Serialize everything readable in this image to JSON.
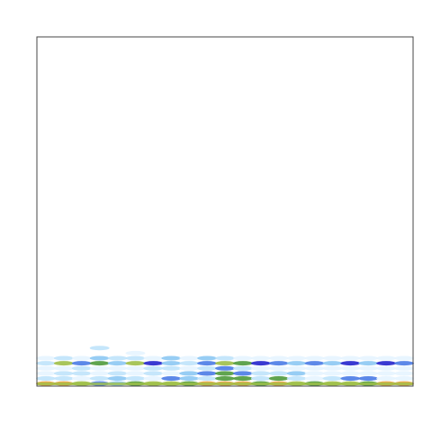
{
  "chart_data": {
    "type": "heatmap",
    "title": "",
    "xlabel": "",
    "ylabel": "",
    "grid": false,
    "legend": "none",
    "axes_frame": true,
    "tick_labels_shown": false,
    "colors": {
      "background": "#ffffff",
      "frame": "#444444",
      "scale": [
        "#ffffff",
        "#dff1ff",
        "#9fd2f6",
        "#3f6ce0",
        "#1a1ac8",
        "#7fbf3a",
        "#b9c84a",
        "#f0a030"
      ]
    },
    "x": [
      0,
      0.05,
      0.1,
      0.15,
      0.2,
      0.25,
      0.3,
      0.35,
      0.4,
      0.45,
      0.5,
      0.55,
      0.6,
      0.65,
      0.7,
      0.75,
      0.8,
      0.85,
      0.9,
      0.95,
      1.0
    ],
    "y": [
      0,
      0.05,
      0.1,
      0.15,
      0.2,
      0.25,
      0.3,
      0.35,
      0.4,
      0.45,
      0.5
    ],
    "values_note_free": true,
    "intensity": [
      [
        0.9,
        0.9,
        0.8,
        0.3,
        0.2,
        0.7,
        0.8,
        0.8,
        0.7,
        0.9,
        1.0,
        0.9,
        0.7,
        0.9,
        0.8,
        0.7,
        0.8,
        0.8,
        0.7,
        0.9,
        0.9
      ],
      [
        0.1,
        0.1,
        0.05,
        0.1,
        0.2,
        0.1,
        0.05,
        0.3,
        0.2,
        0.1,
        0.6,
        0.5,
        0.1,
        0.6,
        0.1,
        0.05,
        0.1,
        0.3,
        0.3,
        0.05,
        0.05
      ],
      [
        0.05,
        0.1,
        0.1,
        0.05,
        0.1,
        0.05,
        0.1,
        0.05,
        0.2,
        0.3,
        0.7,
        0.3,
        0.1,
        0.1,
        0.2,
        0.05,
        0.05,
        0.05,
        0.05,
        0.05,
        0.05
      ],
      [
        0.05,
        0.05,
        0.1,
        0.05,
        0.05,
        0.05,
        0.1,
        0.1,
        0.05,
        0.1,
        0.3,
        0.1,
        0.05,
        0.05,
        0.05,
        0.05,
        0.05,
        0.05,
        0.05,
        0.05,
        0.05
      ],
      [
        0.1,
        0.8,
        0.3,
        0.5,
        0.2,
        0.85,
        0.4,
        0.2,
        0.1,
        0.3,
        0.8,
        0.5,
        0.4,
        0.3,
        0.2,
        0.3,
        0.2,
        0.4,
        0.2,
        0.4,
        0.3
      ],
      [
        0.05,
        0.1,
        0.05,
        0.2,
        0.1,
        0.1,
        0.05,
        0.2,
        0.05,
        0.2,
        0.1,
        0.05,
        0.05,
        0.05,
        0.05,
        0.05,
        0.05,
        0.05,
        0.05,
        0.05,
        0.05
      ],
      [
        0.0,
        0.0,
        0.0,
        0.0,
        0.0,
        0.05,
        0.0,
        0.0,
        0.0,
        0.0,
        0.0,
        0.0,
        0.0,
        0.0,
        0.0,
        0.0,
        0.0,
        0.0,
        0.0,
        0.0,
        0.0
      ],
      [
        0.0,
        0.0,
        0.0,
        0.1,
        0.0,
        0.0,
        0.0,
        0.0,
        0.0,
        0.0,
        0.0,
        0.0,
        0.0,
        0.0,
        0.0,
        0.0,
        0.0,
        0.0,
        0.0,
        0.0,
        0.0
      ],
      [
        0.0,
        0.0,
        0.0,
        0.0,
        0.0,
        0.0,
        0.0,
        0.0,
        0.0,
        0.0,
        0.0,
        0.0,
        0.0,
        0.0,
        0.0,
        0.0,
        0.0,
        0.0,
        0.0,
        0.0,
        0.0
      ],
      [
        0.0,
        0.0,
        0.0,
        0.0,
        0.0,
        0.0,
        0.0,
        0.0,
        0.0,
        0.0,
        0.0,
        0.0,
        0.0,
        0.0,
        0.0,
        0.0,
        0.0,
        0.0,
        0.0,
        0.0,
        0.0
      ],
      [
        0.0,
        0.0,
        0.0,
        0.0,
        0.0,
        0.0,
        0.0,
        0.0,
        0.0,
        0.0,
        0.0,
        0.0,
        0.0,
        0.0,
        0.0,
        0.0,
        0.0,
        0.0,
        0.0,
        0.0,
        0.0
      ]
    ]
  }
}
